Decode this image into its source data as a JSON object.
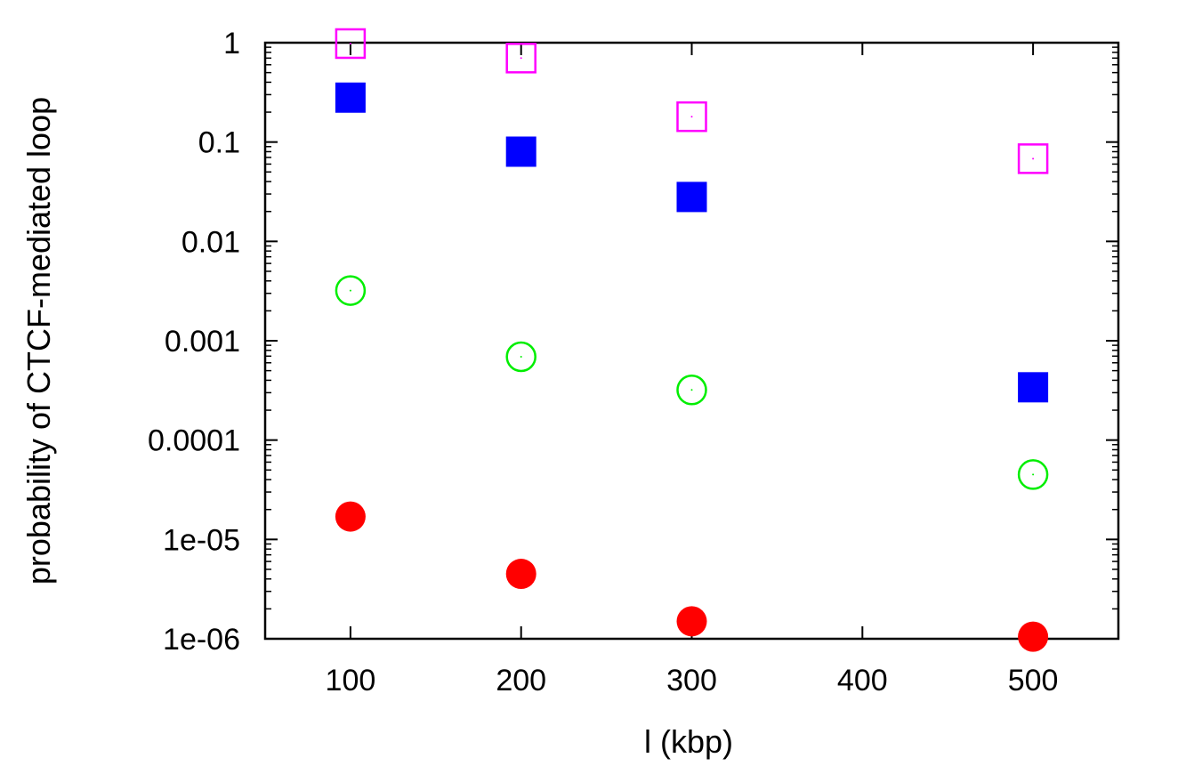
{
  "chart_data": {
    "type": "scatter",
    "title": "",
    "xlabel": "l (kbp)",
    "ylabel": "probability of CTCF-mediated loop",
    "xlim": [
      50,
      550
    ],
    "ylim": [
      1e-06,
      1
    ],
    "yscale": "log",
    "grid": false,
    "x_ticks": [
      100,
      200,
      300,
      400,
      500
    ],
    "x_tick_labels": [
      "100",
      "200",
      "300",
      "400",
      "500"
    ],
    "y_ticks": [
      1,
      0.1,
      0.01,
      0.001,
      0.0001,
      1e-05,
      1e-06
    ],
    "y_tick_labels": [
      "1",
      "0.1",
      "0.01",
      "0.001",
      "0.0001",
      "1e-05",
      "1e-06"
    ],
    "series": [
      {
        "marker": "open-square",
        "color": "#ff00ff",
        "x": [
          100,
          200,
          300,
          500
        ],
        "y": [
          0.98,
          0.7,
          0.18,
          0.068
        ]
      },
      {
        "marker": "filled-square",
        "color": "#0000ff",
        "x": [
          100,
          200,
          300,
          500
        ],
        "y": [
          0.28,
          0.08,
          0.028,
          0.00034
        ]
      },
      {
        "marker": "open-circle",
        "color": "#00ee00",
        "x": [
          100,
          200,
          300,
          500
        ],
        "y": [
          0.0032,
          0.00069,
          0.00032,
          4.5e-05
        ]
      },
      {
        "marker": "filled-circle",
        "color": "#ff0000",
        "x": [
          100,
          200,
          300,
          500
        ],
        "y": [
          1.7e-05,
          4.5e-06,
          1.5e-06,
          1.05e-06
        ]
      }
    ]
  }
}
